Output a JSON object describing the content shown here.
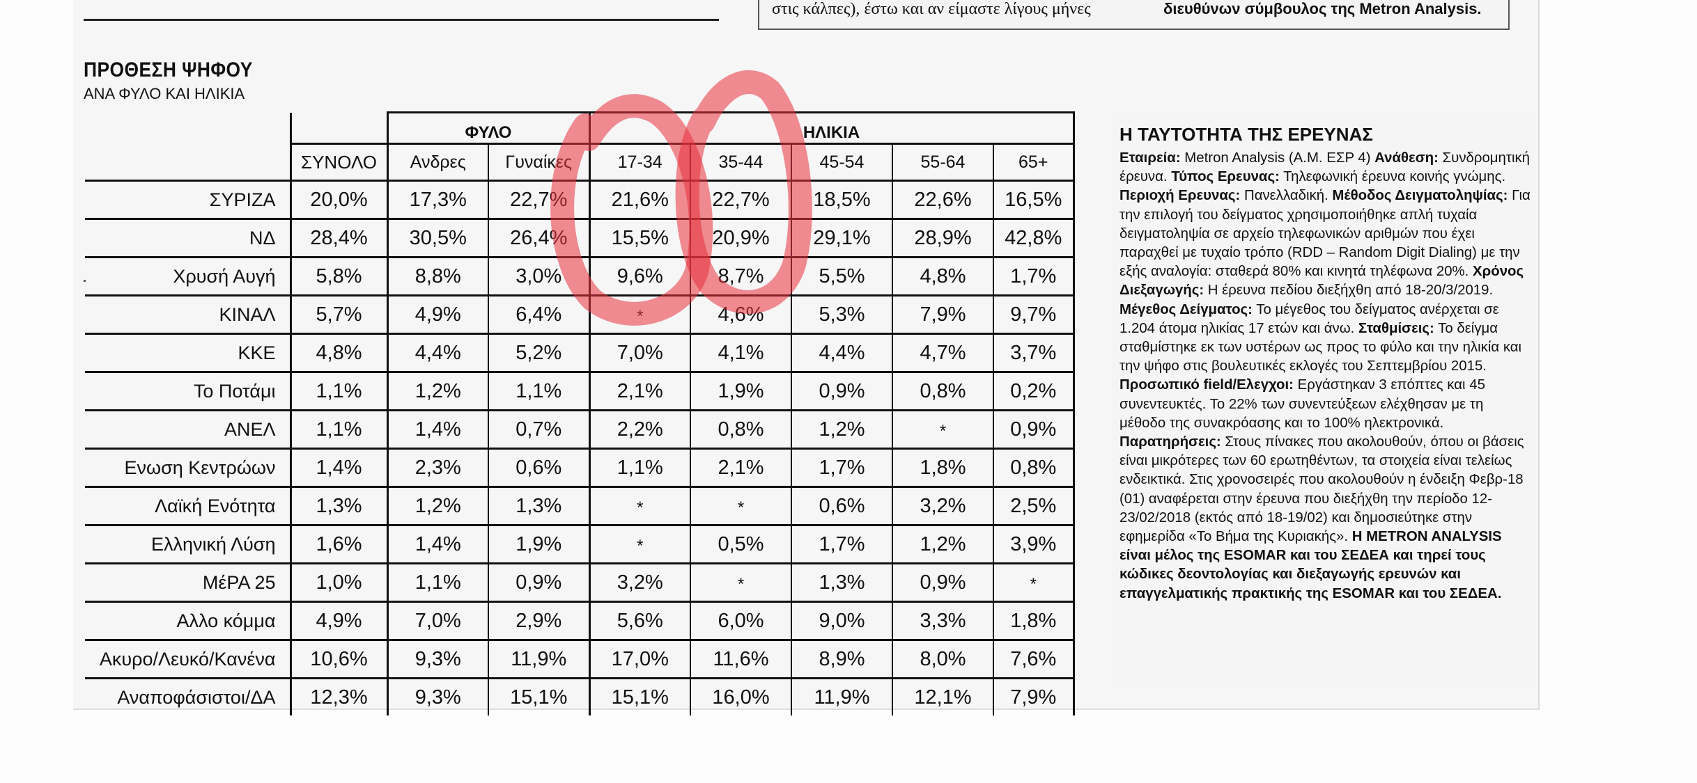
{
  "top_fragment": {
    "left": "στις κάλπες), έστω και αν είμαστε λίγους μήνες",
    "right": "διευθύνων σύμβουλος της Metron Analysis."
  },
  "chart": {
    "title": "ΠΡΟΘΕΣΗ ΨΗΦΟΥ",
    "subtitle": "ΑΝΑ ΦΥΛΟ ΚΑΙ ΗΛΙΚΙΑ",
    "group_phylo": "ΦΥΛΟ",
    "group_ilikia": "ΗΛΙΚΙΑ"
  },
  "chart_data": {
    "type": "table",
    "title": "ΠΡΟΘΕΣΗ ΨΗΦΟΥ",
    "subtitle": "ΑΝΑ ΦΥΛΟ ΚΑΙ ΗΛΙΚΙΑ",
    "column_groups": [
      {
        "name": "",
        "columns": [
          "ΣΥΝΟΛΟ"
        ]
      },
      {
        "name": "ΦΥΛΟ",
        "columns": [
          "Ανδρες",
          "Γυναίκες"
        ]
      },
      {
        "name": "ΗΛΙΚΙΑ",
        "columns": [
          "17-34",
          "35-44",
          "45-54",
          "55-64",
          "65+"
        ]
      }
    ],
    "columns": [
      "ΣΥΝΟΛΟ",
      "Ανδρες",
      "Γυναίκες",
      "17-34",
      "35-44",
      "45-54",
      "55-64",
      "65+"
    ],
    "rows": [
      {
        "party": "ΣΥΡΙΖΑ",
        "values": [
          "20,0%",
          "17,3%",
          "22,7%",
          "21,6%",
          "22,7%",
          "18,5%",
          "22,6%",
          "16,5%"
        ]
      },
      {
        "party": "ΝΔ",
        "values": [
          "28,4%",
          "30,5%",
          "26,4%",
          "15,5%",
          "20,9%",
          "29,1%",
          "28,9%",
          "42,8%"
        ]
      },
      {
        "party": "Χρυσή Αυγή",
        "values": [
          "5,8%",
          "8,8%",
          "3,0%",
          "9,6%",
          "8,7%",
          "5,5%",
          "4,8%",
          "1,7%"
        ]
      },
      {
        "party": "ΚΙΝΑΛ",
        "values": [
          "5,7%",
          "4,9%",
          "6,4%",
          "*",
          "4,6%",
          "5,3%",
          "7,9%",
          "9,7%"
        ]
      },
      {
        "party": "ΚΚΕ",
        "values": [
          "4,8%",
          "4,4%",
          "5,2%",
          "7,0%",
          "4,1%",
          "4,4%",
          "4,7%",
          "3,7%"
        ]
      },
      {
        "party": "Το Ποτάμι",
        "values": [
          "1,1%",
          "1,2%",
          "1,1%",
          "2,1%",
          "1,9%",
          "0,9%",
          "0,8%",
          "0,2%"
        ]
      },
      {
        "party": "ΑΝΕΛ",
        "values": [
          "1,1%",
          "1,4%",
          "0,7%",
          "2,2%",
          "0,8%",
          "1,2%",
          "*",
          "0,9%"
        ]
      },
      {
        "party": "Ενωση Κεντρώων",
        "values": [
          "1,4%",
          "2,3%",
          "0,6%",
          "1,1%",
          "2,1%",
          "1,7%",
          "1,8%",
          "0,8%"
        ]
      },
      {
        "party": "Λαϊκή Ενότητα",
        "values": [
          "1,3%",
          "1,2%",
          "1,3%",
          "*",
          "*",
          "0,6%",
          "3,2%",
          "2,5%"
        ]
      },
      {
        "party": "Ελληνική Λύση",
        "values": [
          "1,6%",
          "1,4%",
          "1,9%",
          "*",
          "0,5%",
          "1,7%",
          "1,2%",
          "3,9%"
        ]
      },
      {
        "party": "ΜέΡΑ 25",
        "values": [
          "1,0%",
          "1,1%",
          "0,9%",
          "3,2%",
          "*",
          "1,3%",
          "0,9%",
          "*"
        ]
      },
      {
        "party": "Αλλο κόμμα",
        "values": [
          "4,9%",
          "7,0%",
          "2,9%",
          "5,6%",
          "6,0%",
          "9,0%",
          "3,3%",
          "1,8%"
        ]
      },
      {
        "party": "Ακυρο/Λευκό/Κανένα",
        "values": [
          "10,6%",
          "9,3%",
          "11,9%",
          "17,0%",
          "11,6%",
          "8,9%",
          "8,0%",
          "7,6%"
        ]
      },
      {
        "party": "Αναποφάσιστοι/ΔΑ",
        "values": [
          "12,3%",
          "9,3%",
          "15,1%",
          "15,1%",
          "16,0%",
          "11,9%",
          "12,1%",
          "7,9%"
        ]
      }
    ],
    "annotations": "red hand-drawn circles around the 17-34 and 35-44 columns (rows ΣΥΡΙΖΑ to Χρυσή Αυγή)"
  },
  "method": {
    "title": "Η ΤΑΥΤΟΤΗΤΑ ΤΗΣ ΕΡΕΥΝΑΣ",
    "segments": [
      {
        "bold": true,
        "text": "Εταιρεία:"
      },
      {
        "bold": false,
        "text": " Metron Analysis (Α.Μ. ΕΣΡ 4) "
      },
      {
        "bold": true,
        "text": "Ανάθεση:"
      },
      {
        "bold": false,
        "text": " Συνδρομητική έρευνα. "
      },
      {
        "bold": true,
        "text": "Τύπος Ερευνας:"
      },
      {
        "bold": false,
        "text": " Τηλεφωνική έρευνα κοινής γνώμης. "
      },
      {
        "bold": true,
        "text": "Περιοχή Ερευνας:"
      },
      {
        "bold": false,
        "text": " Πανελλαδική. "
      },
      {
        "bold": true,
        "text": "Μέθοδος Δειγματοληψίας:"
      },
      {
        "bold": false,
        "text": " Για την επιλογή του δείγματος χρησιμοποιήθηκε απλή τυχαία δειγματοληψία σε αρχείο τηλεφωνικών αριθμών που έχει παραχθεί με τυχαίο τρόπο (RDD – Random Digit Dialing) με την εξής αναλογία: σταθερά 80% και κινητά τηλέφωνα 20%. "
      },
      {
        "bold": true,
        "text": "Χρόνος Διεξαγωγής:"
      },
      {
        "bold": false,
        "text": " Η έρευνα πεδίου διεξήχθη από 18-20/3/2019. "
      },
      {
        "bold": true,
        "text": "Μέγεθος Δείγματος:"
      },
      {
        "bold": false,
        "text": " Το μέγεθος του δείγματος ανέρχεται σε 1.204 άτομα ηλικίας 17 ετών και άνω. "
      },
      {
        "bold": true,
        "text": "Σταθμίσεις:"
      },
      {
        "bold": false,
        "text": " Το δείγμα σταθμίστηκε εκ των υστέρων ως προς το φύλο και την ηλικία και την ψήφο στις βουλευτικές εκλογές  του Σεπτεμβρίου 2015. "
      },
      {
        "bold": true,
        "text": "Προσωπικό field/Ελεγχοι:"
      },
      {
        "bold": false,
        "text": " Εργάστηκαν 3 επόπτες και 45 συνεντευκτές. Το 22% των συνεντεύξεων ελέχθησαν με τη μέθοδο της συνακρόασης και το 100% ηλεκτρονικά. "
      },
      {
        "bold": true,
        "text": "Παρατηρήσεις:"
      },
      {
        "bold": false,
        "text": " Στους πίνακες που ακολουθούν, όπου οι βάσεις είναι μικρότερες των 60 ερωτηθέντων, τα στοιχεία είναι τελείως ενδεικτικά. Στις χρονοσειρές που ακολουθούν η ένδειξη Φεβρ-18 (01) αναφέρεται στην έρευνα που διεξήχθη την περίοδο 12-23/02/2018 (εκτός από 18-19/02) και δημοσιεύτηκε στην εφημερίδα «Το Βήμα της Κυριακής». "
      },
      {
        "bold": true,
        "text": "Η METRON ANALYSIS είναι μέλος της ESOMAR και του ΣΕΔΕΑ και τηρεί τους κώδικες δεοντολογίας και διεξαγωγής ερευνών και επαγγελματικής πρακτικής της ESOMAR και του ΣΕΔΕΑ."
      }
    ]
  },
  "colors": {
    "ink": "#111111",
    "paper": "#f6f6f6",
    "marker_red": "#e8323c"
  }
}
